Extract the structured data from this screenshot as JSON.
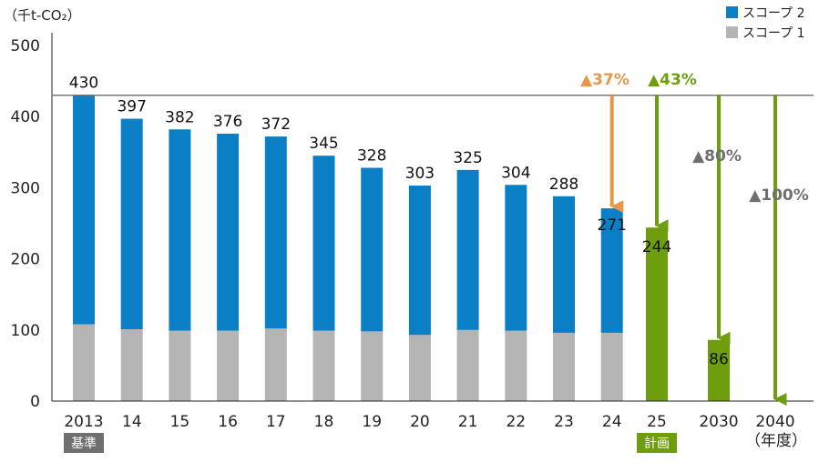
{
  "chart_data": {
    "type": "bar",
    "unit_label": "（千t-CO₂）",
    "year_suffix": "（年度）",
    "ylim": [
      0,
      500
    ],
    "yticks": [
      "0",
      "100",
      "200",
      "300",
      "400",
      "500"
    ],
    "legend": [
      {
        "name": "スコープ 2",
        "color": "#0b7fc6"
      },
      {
        "name": "スコープ 1",
        "color": "#b4b4b4"
      }
    ],
    "categories": [
      "2013",
      "14",
      "15",
      "16",
      "17",
      "18",
      "19",
      "20",
      "21",
      "22",
      "23",
      "24"
    ],
    "series": [
      {
        "name": "スコープ 1",
        "color": "#b4b4b4",
        "values": [
          108,
          101,
          99,
          99,
          102,
          99,
          98,
          93,
          100,
          99,
          96,
          96
        ]
      },
      {
        "name": "スコープ 2",
        "color": "#0b7fc6",
        "values": [
          322,
          296,
          283,
          277,
          270,
          246,
          230,
          210,
          225,
          205,
          192,
          175
        ]
      }
    ],
    "totals": [
      "430",
      "397",
      "382",
      "376",
      "372",
      "345",
      "328",
      "303",
      "325",
      "304",
      "288",
      "271"
    ],
    "baseline": {
      "value": 430,
      "tag": "基準",
      "tag_color": "#6f6f6f"
    },
    "targets": [
      {
        "category": "25",
        "value": 244,
        "label": "244",
        "reduction": "▲43%",
        "color": "#6e9e0d",
        "bar": true,
        "tag": "計画"
      },
      {
        "category": "2030",
        "value": 86,
        "label": "86",
        "reduction": "▲80%",
        "color": "#6e9e0d",
        "bar": true,
        "tag": ""
      },
      {
        "category": "2040",
        "value": 0,
        "label": "",
        "reduction": "▲100%",
        "color": "#6e9e0d",
        "bar": false,
        "tag": ""
      }
    ],
    "reduction_2024": {
      "value": 271,
      "label": "▲37%",
      "color": "#e8964a"
    },
    "label_gray": "#6f6f6f"
  }
}
